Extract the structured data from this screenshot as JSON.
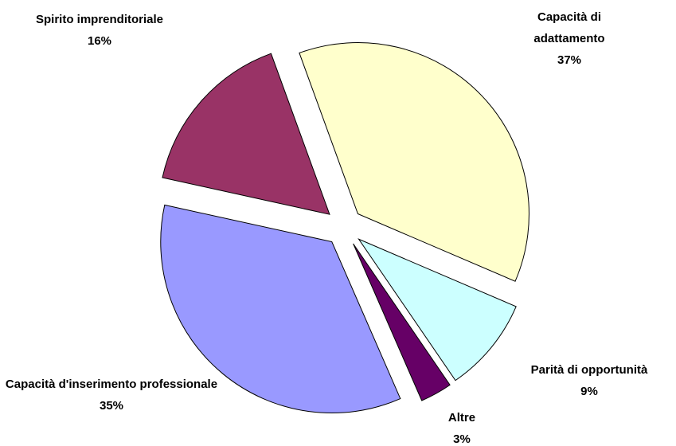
{
  "chart_data": {
    "type": "pie",
    "categories": [
      "Capacità di adattamento",
      "Parità di opportunità",
      "Altre",
      "Capacità d'inserimento professionale",
      "Spirito imprenditoriale"
    ],
    "values": [
      37,
      9,
      3,
      35,
      16
    ],
    "value_labels": [
      "37%",
      "9%",
      "3%",
      "35%",
      "16%"
    ],
    "colors": [
      "#ffffcc",
      "#ccffff",
      "#660066",
      "#9999ff",
      "#993366"
    ],
    "exploded": true
  }
}
